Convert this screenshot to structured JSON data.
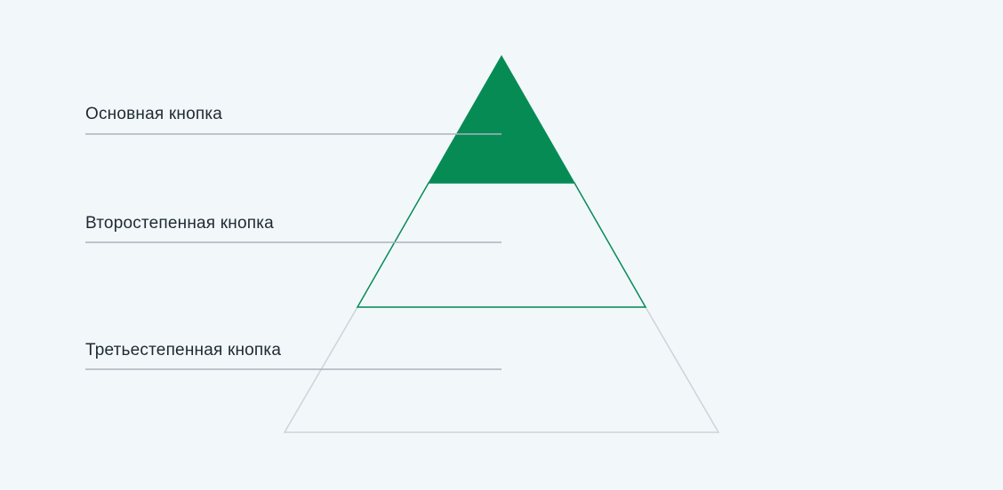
{
  "pyramid": {
    "levels": [
      {
        "label": "Основная кнопка",
        "style": "filled"
      },
      {
        "label": "Второстепенная кнопка",
        "style": "outlined"
      },
      {
        "label": "Третьестепенная кнопка",
        "style": "ghost"
      }
    ],
    "colors": {
      "background": "#f2f7fa",
      "primary": "#078b55",
      "tertiary_outline": "#cdd3d8",
      "leader_line": "#a9b3bb",
      "text": "#1f2a33"
    }
  }
}
